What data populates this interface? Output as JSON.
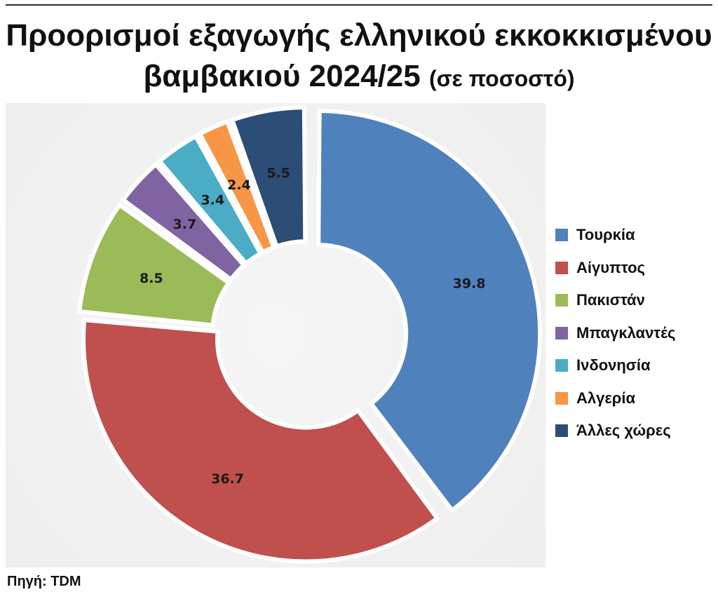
{
  "title": {
    "line1": "Προορισμοί εξαγωγής ελληνικού εκκοκκισμένου",
    "line2": "βαμβακιού 2024/25",
    "unit": "(σε ποσοστό)"
  },
  "source": "Πηγή: TDM",
  "chart_data": {
    "type": "pie",
    "variant": "donut",
    "title": "Προορισμοί εξαγωγής ελληνικού εκκοκκισμένου βαμβακιού 2024/25 (σε ποσοστό)",
    "legend_position": "right",
    "categories": [
      "Τουρκία",
      "Αίγυπτος",
      "Πακιστάν",
      "Μπαγκλαντές",
      "Ινδονησία",
      "Αλγερία",
      "Άλλες χώρες"
    ],
    "values": [
      39.8,
      36.7,
      8.5,
      3.7,
      3.4,
      2.4,
      5.5
    ],
    "labels": [
      "39.8",
      "36.7",
      "8.5",
      "3.7",
      "3.4",
      "2.4",
      "5.5"
    ],
    "colors": [
      "#4f81bd",
      "#c0504d",
      "#9bbb59",
      "#8064a2",
      "#4bacc6",
      "#f79646",
      "#2c4d75"
    ]
  }
}
